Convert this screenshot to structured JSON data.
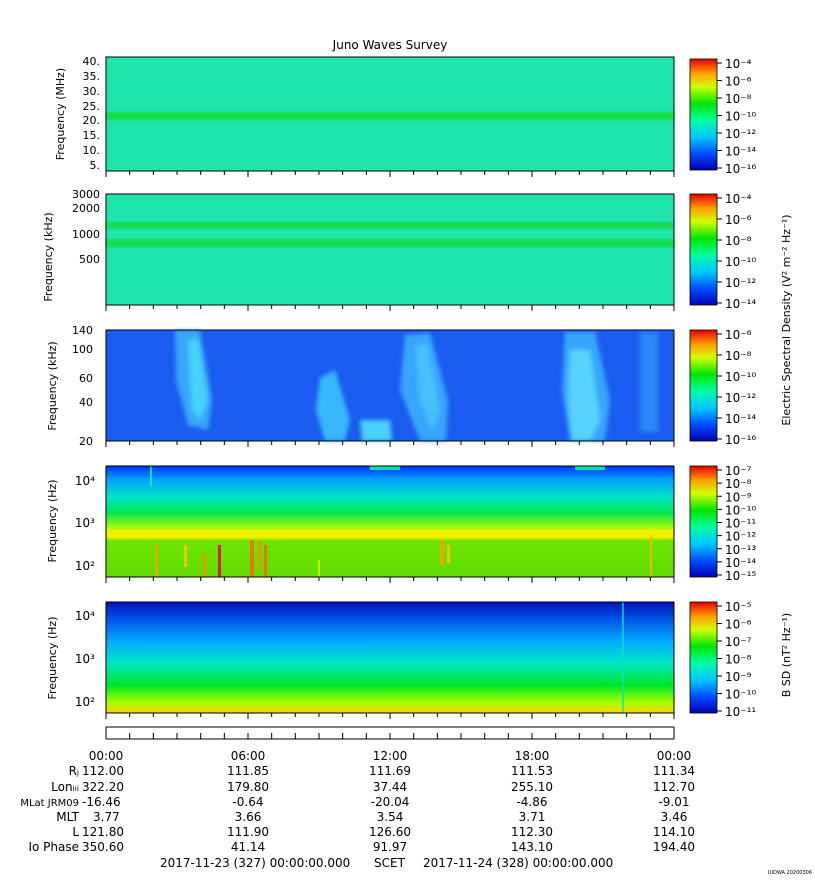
{
  "title": "Juno Waves Survey",
  "footer": {
    "start": "2017-11-23 (327) 00:00:00.000",
    "scet": "SCET",
    "end": "2017-11-24 (328) 00:00:00.000",
    "credit": "UIOWA 20200306"
  },
  "colorbar_labels": {
    "electric": "Electric Spectral Density (V² m⁻² Hz⁻¹)",
    "magnetic": "B SD (nT² Hz⁻¹)"
  },
  "colors": {
    "background_level": "#1ee8a8",
    "low": "#0000c8",
    "mid_low": "#00c8ff",
    "mid": "#00ff60",
    "high": "#ffff00",
    "max": "#e80000"
  },
  "ephemeris": {
    "time_labels": [
      "00:00",
      "06:00",
      "12:00",
      "18:00",
      "00:00"
    ],
    "rows": [
      {
        "label": "Rⱼ",
        "values": [
          "112.00",
          "111.85",
          "111.69",
          "111.53",
          "111.34"
        ]
      },
      {
        "label": "Lonᵢᵢᵢ",
        "values": [
          "322.20",
          "179.80",
          "37.44",
          "255.10",
          "112.70"
        ]
      },
      {
        "label": "MLat JRM09",
        "values": [
          "-16.46",
          "-0.64",
          "-20.04",
          "-4.86",
          "-9.01"
        ]
      },
      {
        "label": "MLT",
        "values": [
          "3.77",
          "3.66",
          "3.54",
          "3.71",
          "3.46"
        ]
      },
      {
        "label": "L",
        "values": [
          "121.80",
          "111.90",
          "126.60",
          "112.30",
          "114.10"
        ]
      },
      {
        "label": "Io Phase",
        "values": [
          "350.60",
          "41.14",
          "91.97",
          "143.10",
          "194.40"
        ]
      }
    ]
  },
  "chart_data": [
    {
      "type": "heatmap",
      "name": "panel-hfr-high",
      "ylabel": "Frequency (MHz)",
      "yticks": [
        "40.",
        "35.",
        "30.",
        "25.",
        "20.",
        "15.",
        "10.",
        "5."
      ],
      "ylim": [
        3.5,
        41
      ],
      "yscale": "linear",
      "colorbar": {
        "ticks": [
          "10⁻⁴",
          "10⁻⁶",
          "10⁻⁸",
          "10⁻¹⁰",
          "10⁻¹²",
          "10⁻¹⁴",
          "10⁻¹⁶"
        ],
        "range": [
          -17,
          -4
        ]
      },
      "features": [
        {
          "kind": "band",
          "freq": 21,
          "level": -11.5
        }
      ],
      "background_level": -12.5
    },
    {
      "type": "heatmap",
      "name": "panel-hfr-low",
      "ylabel": "Frequency (kHz)",
      "yticks": [
        "3000",
        "2000",
        "1000",
        "500"
      ],
      "ylim": [
        140,
        3000
      ],
      "yscale": "log",
      "colorbar": {
        "ticks": [
          "10⁻⁴",
          "10⁻⁶",
          "10⁻⁸",
          "10⁻¹⁰",
          "10⁻¹²",
          "10⁻¹⁴"
        ],
        "range": [
          -15,
          -4
        ]
      },
      "features": [
        {
          "kind": "band",
          "freq": 1300,
          "level": -11
        },
        {
          "kind": "band",
          "freq": 800,
          "level": -11
        }
      ],
      "background_level": -12
    },
    {
      "type": "heatmap",
      "name": "panel-lfr-high",
      "ylabel": "Frequency (kHz)",
      "yticks": [
        "140",
        "100",
        "60",
        "40",
        "20"
      ],
      "ylim": [
        20,
        140
      ],
      "yscale": "linear",
      "colorbar": {
        "ticks": [
          "10⁻⁶",
          "10⁻⁸",
          "10⁻¹⁰",
          "10⁻¹²",
          "10⁻¹⁴",
          "10⁻¹⁶"
        ],
        "range": [
          -16,
          -6
        ]
      },
      "features": [
        {
          "kind": "burst",
          "t_start": 1.6,
          "t_end": 4.4,
          "level": -12.5
        },
        {
          "kind": "burst",
          "t_start": 8.6,
          "t_end": 11.0,
          "level": -12.5
        },
        {
          "kind": "burst",
          "t_start": 11.8,
          "t_end": 14.2,
          "level": -12.5
        },
        {
          "kind": "burst",
          "t_start": 19.0,
          "t_end": 21.6,
          "level": -12.5
        }
      ],
      "background_level": -14.5
    },
    {
      "type": "heatmap",
      "name": "panel-lfr-low",
      "ylabel": "Frequency (Hz)",
      "yticks": [
        "10⁴",
        "10³",
        "10²"
      ],
      "ylim": [
        50,
        20000
      ],
      "yscale": "log",
      "colorbar": {
        "ticks": [
          "10⁻⁷",
          "10⁻⁸",
          "10⁻⁹",
          "10⁻¹⁰",
          "10⁻¹¹",
          "10⁻¹²",
          "10⁻¹³",
          "10⁻¹⁴",
          "10⁻¹⁵"
        ],
        "range": [
          -15,
          -7
        ]
      },
      "features": [
        {
          "kind": "band",
          "freq": 500,
          "level": -8.5
        }
      ],
      "background_level": -11
    },
    {
      "type": "heatmap",
      "name": "panel-magnetic",
      "ylabel": "Frequency (Hz)",
      "yticks": [
        "10⁴",
        "10³",
        "10²"
      ],
      "ylim": [
        50,
        20000
      ],
      "yscale": "log",
      "colorbar": {
        "ticks": [
          "10⁻⁵",
          "10⁻⁶",
          "10⁻⁷",
          "10⁻⁸",
          "10⁻⁹",
          "10⁻¹⁰",
          "10⁻¹¹"
        ],
        "range": [
          -11,
          -4.5
        ]
      },
      "features": [],
      "background_level": -9
    }
  ]
}
